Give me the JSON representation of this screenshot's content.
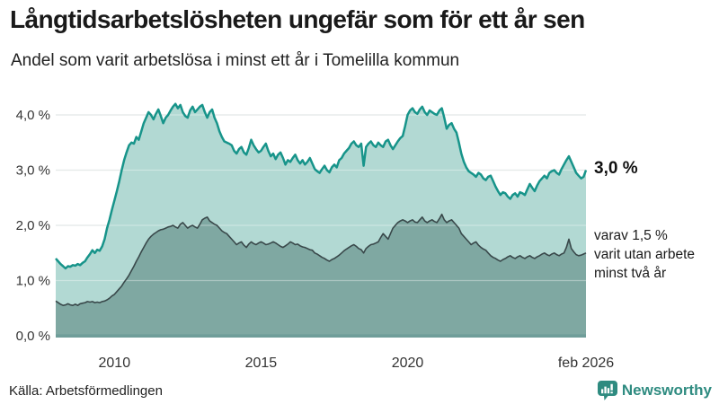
{
  "header": {
    "title": "Långtidsarbetslösheten ungefär som för ett år sen",
    "subtitle": "Andel som varit arbetslösa i minst ett år i Tomelilla kommun"
  },
  "annotations": {
    "latest_total": "3,0 %",
    "breakdown_lines": [
      "varav 1,5 %",
      "varit utan arbete",
      "minst två år"
    ]
  },
  "footer": {
    "source": "Källa: Arbetsförmedlingen"
  },
  "logo": {
    "name": "Newsworthy",
    "color": "#2e8b80",
    "icon": "newsworthy-bar-chart-bubble"
  },
  "chart_data": {
    "type": "area",
    "title": "Långtidsarbetslösheten ungefär som för ett år sen",
    "subtitle": "Andel som varit arbetslösa i minst ett år i Tomelilla kommun",
    "xlabel": "",
    "ylabel": "",
    "x_start": 2008.0,
    "x_step": 0.08333,
    "x_end_label": "feb 2026",
    "ylim": [
      0,
      4.3
    ],
    "grid": true,
    "legend_position": "none",
    "unit": "%",
    "y_ticks": [
      {
        "value": 0,
        "label": "0,0 %"
      },
      {
        "value": 1,
        "label": "1,0 %"
      },
      {
        "value": 2,
        "label": "2,0 %"
      },
      {
        "value": 3,
        "label": "3,0 %"
      },
      {
        "value": 4,
        "label": "4,0 %"
      }
    ],
    "x_ticks": [
      {
        "x": 2010,
        "label": "2010"
      },
      {
        "x": 2015,
        "label": "2015"
      },
      {
        "x": 2020,
        "label": "2020"
      },
      {
        "x": 2026.083,
        "label": "feb 2026"
      }
    ],
    "colors": {
      "grid": "#d8dfde",
      "grid_over_fill": "rgba(255,255,255,0.35)",
      "baseline": "#6f9d99",
      "tick_text": "#333333"
    },
    "series": [
      {
        "name": "Andel arbetslösa minst ett år",
        "latest_value": 3.0,
        "color": "#17948a",
        "fill": "#b2d9d3",
        "values": [
          1.4,
          1.35,
          1.3,
          1.26,
          1.22,
          1.26,
          1.25,
          1.28,
          1.27,
          1.3,
          1.28,
          1.32,
          1.35,
          1.42,
          1.48,
          1.55,
          1.5,
          1.56,
          1.54,
          1.62,
          1.75,
          1.95,
          2.1,
          2.28,
          2.45,
          2.62,
          2.8,
          3.0,
          3.18,
          3.32,
          3.45,
          3.5,
          3.48,
          3.6,
          3.55,
          3.7,
          3.85,
          3.95,
          4.05,
          4.0,
          3.92,
          4.02,
          4.1,
          3.98,
          3.85,
          3.95,
          4.0,
          4.08,
          4.15,
          4.2,
          4.12,
          4.18,
          4.05,
          3.98,
          3.95,
          4.08,
          4.15,
          4.05,
          4.1,
          4.15,
          4.18,
          4.05,
          3.95,
          4.05,
          4.1,
          3.95,
          3.85,
          3.7,
          3.6,
          3.52,
          3.5,
          3.48,
          3.45,
          3.35,
          3.3,
          3.38,
          3.42,
          3.32,
          3.28,
          3.4,
          3.55,
          3.45,
          3.38,
          3.32,
          3.35,
          3.42,
          3.48,
          3.35,
          3.25,
          3.3,
          3.2,
          3.28,
          3.32,
          3.22,
          3.1,
          3.18,
          3.15,
          3.22,
          3.28,
          3.18,
          3.12,
          3.18,
          3.1,
          3.15,
          3.22,
          3.12,
          3.02,
          2.98,
          2.95,
          3.02,
          3.08,
          3.0,
          2.96,
          3.05,
          3.1,
          3.05,
          3.18,
          3.22,
          3.3,
          3.35,
          3.4,
          3.48,
          3.52,
          3.45,
          3.42,
          3.48,
          3.08,
          3.42,
          3.48,
          3.52,
          3.45,
          3.42,
          3.5,
          3.45,
          3.42,
          3.52,
          3.55,
          3.45,
          3.38,
          3.45,
          3.52,
          3.58,
          3.62,
          3.8,
          4.0,
          4.08,
          4.12,
          4.05,
          4.02,
          4.1,
          4.15,
          4.05,
          4.0,
          4.08,
          4.05,
          4.02,
          4.0,
          4.08,
          4.12,
          3.95,
          3.75,
          3.82,
          3.85,
          3.75,
          3.68,
          3.5,
          3.3,
          3.15,
          3.05,
          2.98,
          2.95,
          2.92,
          2.88,
          2.95,
          2.92,
          2.85,
          2.82,
          2.88,
          2.9,
          2.8,
          2.7,
          2.62,
          2.55,
          2.6,
          2.58,
          2.52,
          2.48,
          2.55,
          2.58,
          2.52,
          2.6,
          2.58,
          2.55,
          2.65,
          2.75,
          2.68,
          2.62,
          2.72,
          2.8,
          2.85,
          2.9,
          2.85,
          2.95,
          2.98,
          3.0,
          2.95,
          2.92,
          3.02,
          3.1,
          3.18,
          3.25,
          3.15,
          3.05,
          2.95,
          2.9,
          2.85,
          2.88,
          3.0
        ]
      },
      {
        "name": "varav utan arbete minst två år",
        "latest_value": 1.5,
        "color": "#39484a",
        "fill": "#7fa8a2",
        "values": [
          0.63,
          0.6,
          0.57,
          0.55,
          0.56,
          0.58,
          0.56,
          0.55,
          0.57,
          0.55,
          0.58,
          0.59,
          0.6,
          0.62,
          0.61,
          0.62,
          0.6,
          0.61,
          0.6,
          0.62,
          0.63,
          0.65,
          0.68,
          0.72,
          0.75,
          0.8,
          0.85,
          0.9,
          0.97,
          1.03,
          1.1,
          1.18,
          1.26,
          1.35,
          1.43,
          1.52,
          1.6,
          1.68,
          1.75,
          1.8,
          1.84,
          1.87,
          1.9,
          1.92,
          1.93,
          1.95,
          1.97,
          1.98,
          2.0,
          1.97,
          1.95,
          2.02,
          2.05,
          2.0,
          1.95,
          1.98,
          2.0,
          1.97,
          1.95,
          2.02,
          2.1,
          2.13,
          2.15,
          2.08,
          2.05,
          2.02,
          2.0,
          1.95,
          1.9,
          1.87,
          1.85,
          1.8,
          1.75,
          1.7,
          1.65,
          1.68,
          1.7,
          1.64,
          1.6,
          1.66,
          1.7,
          1.67,
          1.65,
          1.68,
          1.7,
          1.68,
          1.65,
          1.66,
          1.68,
          1.7,
          1.68,
          1.65,
          1.62,
          1.6,
          1.63,
          1.66,
          1.7,
          1.68,
          1.65,
          1.66,
          1.63,
          1.61,
          1.6,
          1.58,
          1.56,
          1.55,
          1.5,
          1.48,
          1.45,
          1.42,
          1.4,
          1.37,
          1.35,
          1.38,
          1.4,
          1.43,
          1.46,
          1.5,
          1.54,
          1.57,
          1.6,
          1.63,
          1.65,
          1.62,
          1.58,
          1.56,
          1.5,
          1.58,
          1.62,
          1.65,
          1.66,
          1.68,
          1.7,
          1.78,
          1.85,
          1.8,
          1.75,
          1.85,
          1.95,
          2.0,
          2.05,
          2.08,
          2.1,
          2.08,
          2.05,
          2.08,
          2.1,
          2.06,
          2.05,
          2.1,
          2.15,
          2.08,
          2.05,
          2.08,
          2.1,
          2.07,
          2.05,
          2.12,
          2.2,
          2.1,
          2.05,
          2.08,
          2.1,
          2.05,
          2.0,
          1.95,
          1.85,
          1.8,
          1.75,
          1.7,
          1.65,
          1.68,
          1.7,
          1.64,
          1.6,
          1.57,
          1.55,
          1.5,
          1.45,
          1.42,
          1.4,
          1.37,
          1.35,
          1.38,
          1.4,
          1.43,
          1.45,
          1.42,
          1.4,
          1.43,
          1.45,
          1.42,
          1.4,
          1.43,
          1.45,
          1.42,
          1.4,
          1.43,
          1.45,
          1.48,
          1.5,
          1.47,
          1.45,
          1.48,
          1.5,
          1.47,
          1.45,
          1.48,
          1.5,
          1.6,
          1.75,
          1.58,
          1.52,
          1.47,
          1.45,
          1.46,
          1.48,
          1.5
        ]
      }
    ]
  }
}
